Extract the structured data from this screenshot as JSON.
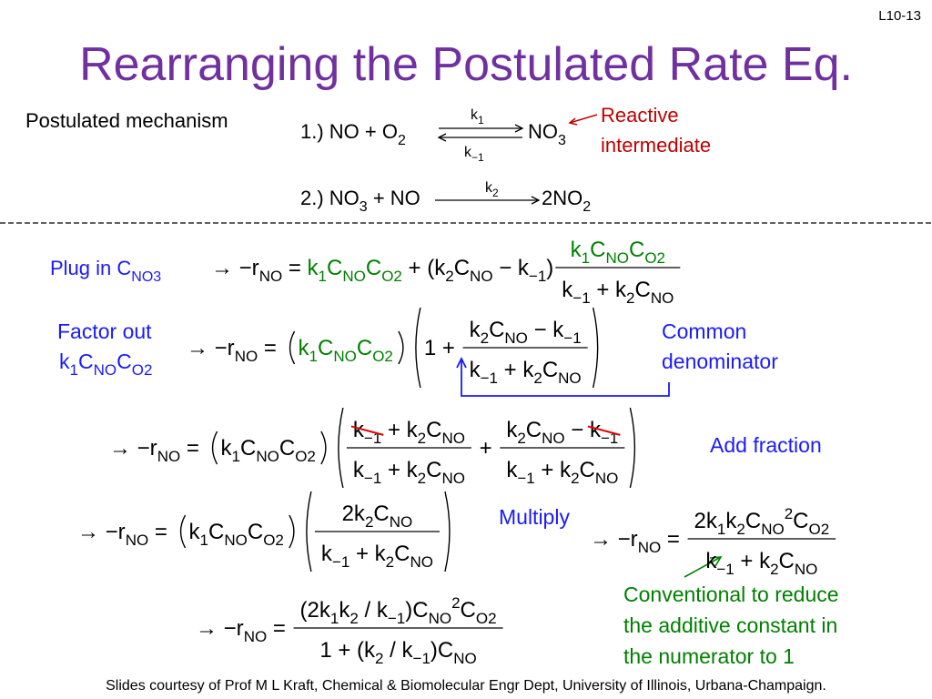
{
  "slide_number": "L10-13",
  "title": "Rearranging the Postulated Rate Eq.",
  "mechanism": {
    "label": "Postulated mechanism",
    "step1": {
      "reactants": [
        "1.) NO + O",
        "2"
      ],
      "k_forward": [
        "k",
        "1"
      ],
      "k_reverse": [
        "k",
        "−1"
      ],
      "product": [
        "NO",
        "3"
      ]
    },
    "step2": {
      "reactants": [
        "2.) NO",
        "3",
        " + NO"
      ],
      "k": [
        "k",
        "2"
      ],
      "product": [
        "2NO",
        "2"
      ]
    },
    "note": [
      "Reactive",
      "intermediate"
    ]
  },
  "step1": {
    "label": [
      "Plug in C",
      "NO3"
    ],
    "lhs": [
      "→ −r",
      "NO",
      " = ",
      "k",
      "1",
      "C",
      "NO",
      "C",
      "O2",
      " + (k",
      "2",
      "C",
      "NO",
      " − k",
      "−1",
      ")"
    ],
    "num": [
      "k",
      "1",
      "C",
      "NO",
      "C",
      "O2"
    ],
    "den": [
      "k",
      "−1",
      " + k",
      "2",
      "C",
      "NO"
    ]
  },
  "step2": {
    "label_line1": [
      "Factor out"
    ],
    "label_line2": [
      "k",
      "1",
      "C",
      "NO",
      "C",
      "O2"
    ],
    "lhs": [
      "→ −r",
      "NO",
      " = "
    ],
    "factor": [
      "k",
      "1",
      "C",
      "NO",
      "C",
      "O2"
    ],
    "one": [
      "1 + "
    ],
    "num": [
      "k",
      "2",
      "C",
      "NO",
      " − k",
      "−1"
    ],
    "den": [
      "k",
      "−1",
      " + k",
      "2",
      "C",
      "NO"
    ],
    "note": [
      "Common",
      "denominator"
    ]
  },
  "step3": {
    "lhs": [
      "→ −r",
      "NO",
      " = "
    ],
    "factor": [
      "k",
      "1",
      "C",
      "NO",
      "C",
      "O2"
    ],
    "num1": [
      "k",
      "−1",
      " + k",
      "2",
      "C",
      "NO"
    ],
    "den1": [
      "k",
      "−1",
      " + k",
      "2",
      "C",
      "NO"
    ],
    "plus": [
      " + "
    ],
    "num2": [
      "k",
      "2",
      "C",
      "NO",
      " − ",
      "k",
      "−1"
    ],
    "den2": [
      "k",
      "−1",
      " + k",
      "2",
      "C",
      "NO"
    ],
    "note": "Add fraction"
  },
  "step4": {
    "lhs": [
      "→ −r",
      "NO",
      " = "
    ],
    "factor": [
      "k",
      "1",
      "C",
      "NO",
      "C",
      "O2"
    ],
    "num": [
      "2k",
      "2",
      "C",
      "NO"
    ],
    "den": [
      "k",
      "−1",
      " + k",
      "2",
      "C",
      "NO"
    ],
    "note": "Multiply",
    "lhs2": [
      "→ −r",
      "NO",
      " = "
    ],
    "num2": [
      "2k",
      "1",
      "k",
      "2",
      "C",
      "NO",
      "2",
      "C",
      "O2"
    ],
    "den2": [
      "k",
      "−1",
      " + k",
      "2",
      "C",
      "NO"
    ]
  },
  "step5": {
    "lhs": [
      "→ −r",
      "NO",
      " = "
    ],
    "num": [
      "(2k",
      "1",
      "k",
      "2",
      " / k",
      "−1",
      ")C",
      "NO",
      "2",
      "C",
      "O2"
    ],
    "den": [
      "1 + (k",
      "2",
      " / k",
      "−1",
      ")C",
      "NO"
    ],
    "note": [
      "Conventional to reduce",
      "the additive constant in",
      "the numerator to 1"
    ]
  },
  "footer": "Slides courtesy of Prof M L Kraft, Chemical & Biomolecular Engr Dept, University of Illinois, Urbana-Champaign."
}
